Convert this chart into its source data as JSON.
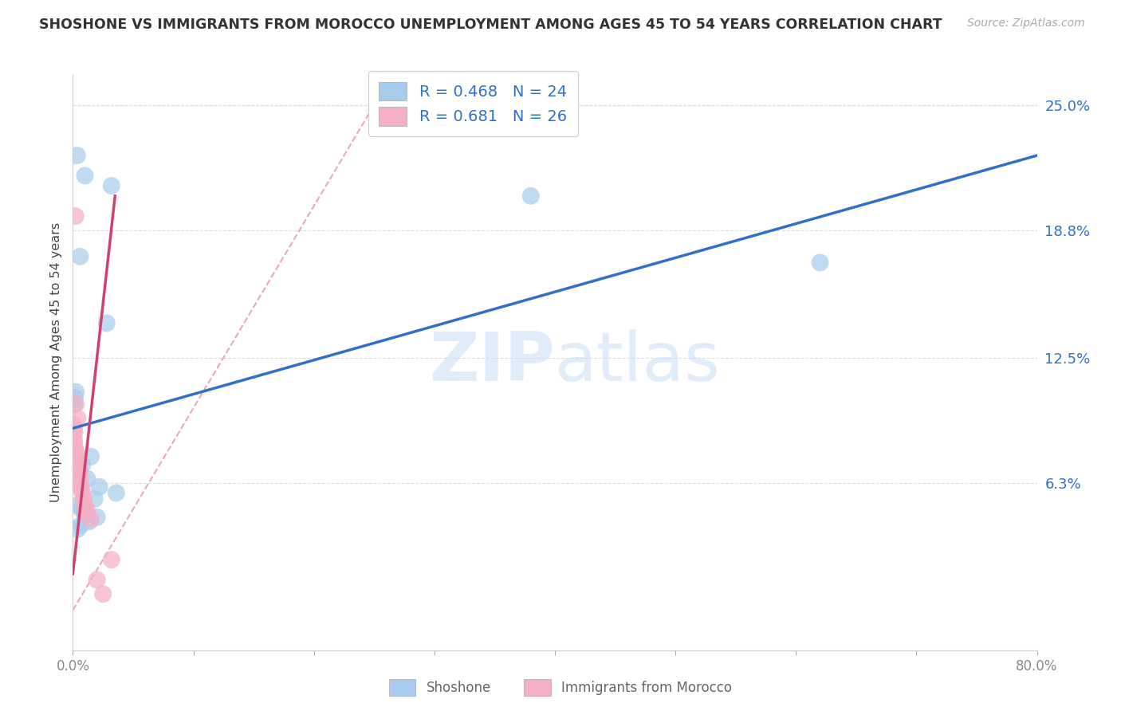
{
  "title": "SHOSHONE VS IMMIGRANTS FROM MOROCCO UNEMPLOYMENT AMONG AGES 45 TO 54 YEARS CORRELATION CHART",
  "source": "Source: ZipAtlas.com",
  "ylabel_label": "Unemployment Among Ages 45 to 54 years",
  "legend_label1": "Shoshone",
  "legend_label2": "Immigrants from Morocco",
  "R1": "0.468",
  "N1": "24",
  "R2": "0.681",
  "N2": "26",
  "color1": "#a8ccee",
  "color2": "#f5b0c5",
  "line_color1": "#3070c8",
  "line_color2": "#d04070",
  "ref_line_color": "#e8a0b0",
  "watermark_color": "#cce0f5",
  "xmin": 0.0,
  "xmax": 80.0,
  "ymin": -2.0,
  "ymax": 26.5,
  "yticks": [
    0.0,
    6.3,
    12.5,
    18.8,
    25.0
  ],
  "ytick_labels": [
    "",
    "6.3%",
    "12.5%",
    "18.8%",
    "25.0%"
  ],
  "xticks": [
    0,
    10,
    20,
    30,
    40,
    50,
    60,
    70,
    80
  ],
  "xtick_labels": [
    "0.0%",
    "",
    "",
    "",
    "",
    "",
    "",
    "",
    "80.0%"
  ],
  "blue_line": {
    "x0": 0,
    "y0": 9.0,
    "x1": 80,
    "y1": 22.5
  },
  "pink_line": {
    "x0": 0.0,
    "y0": 1.8,
    "x1": 3.5,
    "y1": 20.5
  },
  "ref_line": {
    "x0": 0,
    "y0": 0,
    "x1": 26,
    "y1": 26
  },
  "shoshone_x": [
    0.35,
    1.0,
    3.2,
    0.6,
    0.25,
    0.18,
    0.12,
    2.8,
    38.0,
    62.0,
    1.5,
    0.8,
    0.55,
    1.2,
    2.2,
    3.6,
    1.8,
    0.45,
    0.7,
    0.95,
    2.0,
    1.4,
    0.65,
    0.38
  ],
  "shoshone_y": [
    22.5,
    21.5,
    21.0,
    17.5,
    10.8,
    10.5,
    10.2,
    14.2,
    20.5,
    17.2,
    7.6,
    7.2,
    6.9,
    6.5,
    6.1,
    5.8,
    5.5,
    5.2,
    5.0,
    4.8,
    4.6,
    4.4,
    4.2,
    4.0
  ],
  "morocco_x": [
    0.05,
    0.1,
    0.15,
    0.08,
    0.12,
    0.18,
    0.25,
    0.3,
    0.35,
    0.4,
    0.45,
    0.5,
    0.55,
    0.6,
    0.65,
    0.7,
    0.8,
    0.9,
    1.0,
    1.1,
    1.2,
    1.5,
    2.0,
    2.5,
    0.22,
    3.2
  ],
  "morocco_y": [
    9.2,
    9.0,
    8.8,
    8.5,
    8.3,
    8.0,
    10.2,
    7.8,
    7.5,
    9.5,
    7.2,
    7.0,
    6.8,
    6.5,
    6.2,
    6.0,
    5.8,
    5.5,
    5.2,
    5.0,
    4.8,
    4.5,
    1.5,
    0.8,
    19.5,
    2.5
  ]
}
